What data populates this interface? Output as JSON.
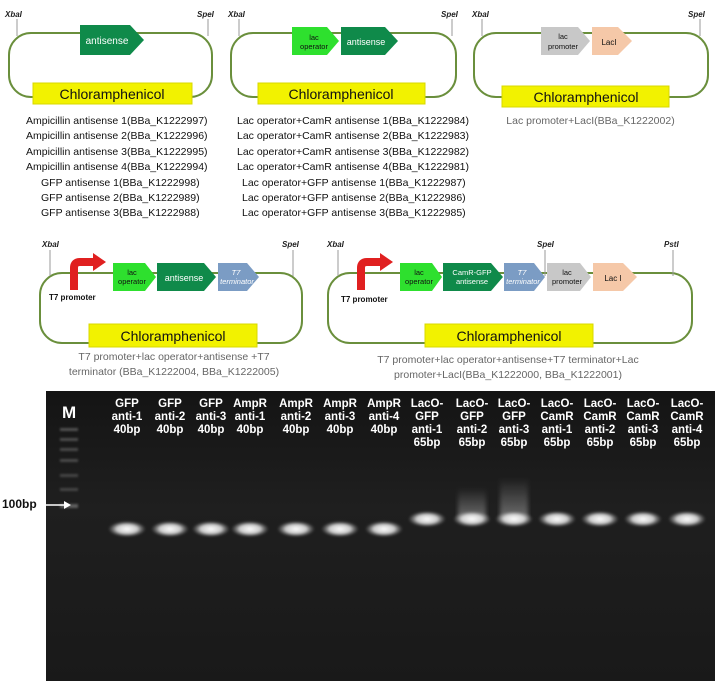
{
  "panels": [
    {
      "sites": [
        "XbaI",
        "SpeI"
      ],
      "parts": [
        "antisense"
      ],
      "marker": "Chloramphenicol",
      "captions": [
        "Ampicillin antisense 1(BBa_K1222997)",
        "Ampicillin antisense 2(BBa_K1222996)",
        "Ampicillin antisense 3(BBa_K1222995)",
        "Ampicillin antisense 4(BBa_K1222994)",
        "GFP antisense 1(BBa_K1222998)",
        "GFP antisense 2(BBa_K1222989)",
        "GFP antisense 3(BBa_K1222988)"
      ]
    },
    {
      "sites": [
        "XbaI",
        "SpeI"
      ],
      "parts": [
        "lac operator",
        "antisense"
      ],
      "marker": "Chloramphenicol",
      "captions": [
        "Lac operator+CamR antisense 1(BBa_K1222984)",
        "Lac operator+CamR antisense 2(BBa_K1222983)",
        "Lac operator+CamR antisense 3(BBa_K1222982)",
        "Lac operator+CamR antisense 4(BBa_K1222981)",
        "Lac operator+GFP antisense 1(BBa_K1222987)",
        "Lac operator+GFP antisense 2(BBa_K1222986)",
        "Lac operator+GFP antisense 3(BBa_K1222985)"
      ]
    },
    {
      "sites": [
        "XbaI",
        "SpeI"
      ],
      "parts": [
        "lac promoter",
        "LacI"
      ],
      "marker": "Chloramphenicol",
      "caption": "Lac promoter+LacI(BBa_K1222002)"
    },
    {
      "sites": [
        "XbaI",
        "SpeI"
      ],
      "parts": [
        "T7 promoter",
        "lac operator",
        "antisense",
        "T7 terminator"
      ],
      "marker": "Chloramphenicol",
      "caption_lines": [
        "T7 promoter+lac operator+antisense +T7",
        "terminator (BBa_K1222004, BBa_K1222005)"
      ]
    },
    {
      "sites": [
        "XbaI",
        "SpeI",
        "PstI"
      ],
      "parts": [
        "T7 promoter",
        "lac operator",
        "CamR-GFP antisense",
        "T7 terminator",
        "lac promoter",
        "Lac I"
      ],
      "marker": "Chloramphenicol",
      "caption_lines": [
        "T7 promoter+lac operator+antisense+T7 terminator+Lac",
        "promoter+LacI(BBa_K1222000, BBa_K1222001)"
      ]
    }
  ],
  "gel": {
    "marker_lane_label": "M",
    "size_marker_label": "100bp",
    "lanes": [
      [
        "GFP",
        "anti-1",
        "40bp"
      ],
      [
        "GFP",
        "anti-2",
        "40bp"
      ],
      [
        "GFP",
        "anti-3",
        "40bp"
      ],
      [
        "AmpR",
        "anti-1",
        "40bp"
      ],
      [
        "AmpR",
        "anti-2",
        "40bp"
      ],
      [
        "AmpR",
        "anti-3",
        "40bp"
      ],
      [
        "AmpR",
        "anti-4",
        "40bp"
      ],
      [
        "LacO-",
        "GFP",
        "anti-1",
        "65bp"
      ],
      [
        "LacO-",
        "GFP",
        "anti-2",
        "65bp"
      ],
      [
        "LacO-",
        "GFP",
        "anti-3",
        "65bp"
      ],
      [
        "LacO-",
        "CamR",
        "anti-1",
        "65bp"
      ],
      [
        "LacO-",
        "CamR",
        "anti-2",
        "65bp"
      ],
      [
        "LacO-",
        "CamR",
        "anti-3",
        "65bp"
      ],
      [
        "LacO-",
        "CamR",
        "anti-4",
        "65bp"
      ]
    ]
  },
  "colors": {
    "backbone": "#6a8f3c",
    "marker_fill": "#f2f200",
    "antisense_green": "#0f8a4a",
    "operator_green": "#2ee02e",
    "terminator_blue": "#7b9cc4",
    "promoter_grey": "#c8c8c8",
    "laci_peach": "#f5c8a8",
    "t7_red": "#e02020",
    "gel_bg": "#1b1b1b"
  }
}
